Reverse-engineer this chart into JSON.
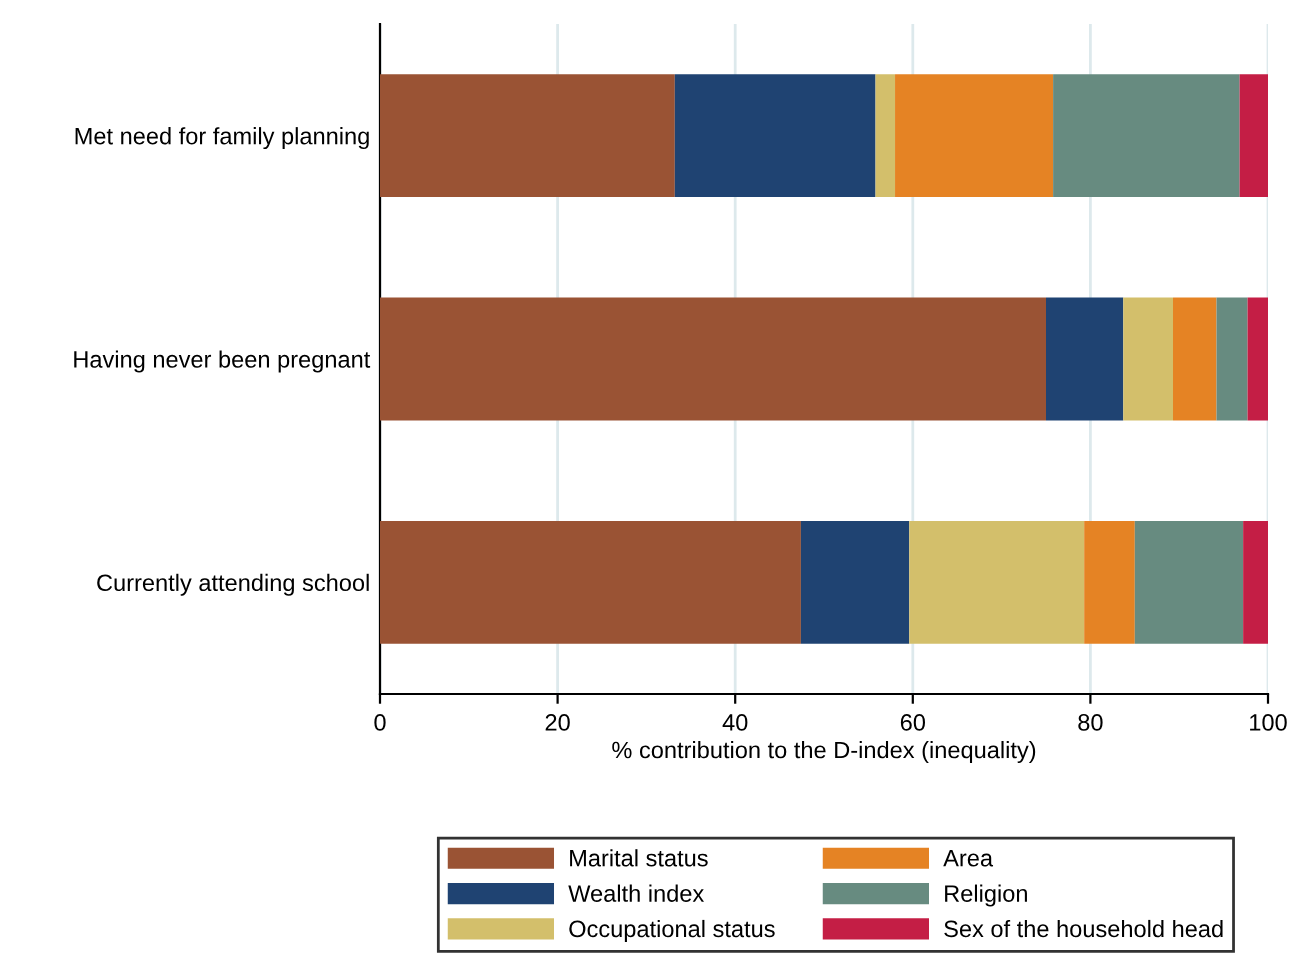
{
  "chart_data": {
    "type": "bar",
    "orientation": "horizontal",
    "stacked": true,
    "xlabel": "% contribution to the D-index (inequality)",
    "categories": [
      "Met need for family planning",
      "Having never been pregnant",
      "Currently attending school"
    ],
    "series": [
      {
        "name": "Marital status",
        "color": "#9a5334",
        "values": [
          33.2,
          75.0,
          47.4
        ]
      },
      {
        "name": "Wealth index",
        "color": "#1f4372",
        "values": [
          22.6,
          8.7,
          12.2
        ]
      },
      {
        "name": "Occupational status",
        "color": "#d3bf6b",
        "values": [
          2.2,
          5.6,
          19.7
        ]
      },
      {
        "name": "Area",
        "color": "#e58324",
        "values": [
          17.8,
          4.9,
          5.7
        ]
      },
      {
        "name": "Religion",
        "color": "#678b80",
        "values": [
          21.0,
          3.5,
          12.2
        ]
      },
      {
        "name": "Sex of the household head",
        "color": "#c41e45",
        "values": [
          3.2,
          2.3,
          2.8
        ]
      }
    ],
    "xlim": [
      0,
      100
    ],
    "xticks": [
      0,
      20,
      40,
      60,
      80,
      100
    ],
    "grid": "x",
    "legend": "bottom"
  }
}
